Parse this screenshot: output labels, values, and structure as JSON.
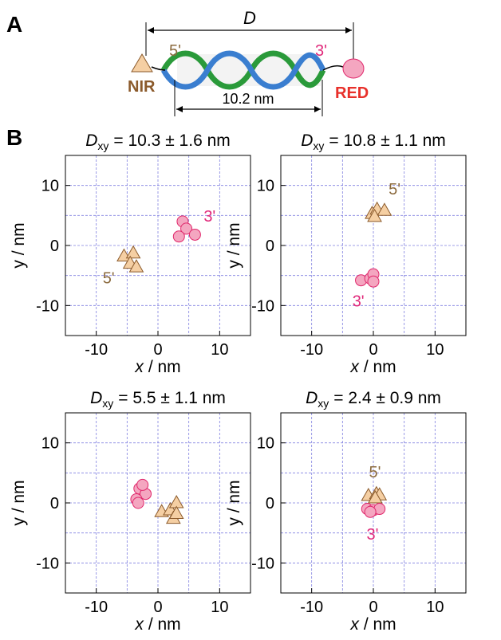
{
  "diagram": {
    "panel_a": "A",
    "panel_b": "B",
    "distance": "D",
    "end5": "5'",
    "end3": "3'",
    "nir": "NIR",
    "red": "RED",
    "length": "10.2 nm"
  },
  "chart_data": [
    {
      "type": "scatter",
      "title_symbol": "D",
      "title_subscript": "xy",
      "title": "= 10.3 ± 1.6 nm",
      "xlabel_var": "x",
      "xlabel": "/ nm",
      "ylabel": "y / nm",
      "xlim": [
        -15,
        15
      ],
      "ylim": [
        -15,
        15
      ],
      "xticks": [
        -10,
        0,
        10
      ],
      "yticks": [
        -10,
        0,
        10
      ],
      "xminor": [
        -5,
        5
      ],
      "yminor": [
        -5,
        5
      ],
      "grid": true,
      "series": [
        {
          "name": "5'",
          "marker": "triangle",
          "color": "#f5cfa3",
          "x": [
            -5.5,
            -4,
            -4.5,
            -3.5
          ],
          "y": [
            -1.8,
            -1.3,
            -3,
            -3.6
          ]
        },
        {
          "name": "3'",
          "marker": "circle",
          "color": "#f4a6c0",
          "x": [
            4,
            4.6,
            6,
            3.4
          ],
          "y": [
            4,
            2.8,
            1.8,
            1.5
          ]
        }
      ]
    },
    {
      "type": "scatter",
      "title_symbol": "D",
      "title_subscript": "xy",
      "title": "= 10.8 ± 1.1 nm",
      "xlabel_var": "x",
      "xlabel": "/ nm",
      "ylabel": "y / nm",
      "xlim": [
        -15,
        15
      ],
      "ylim": [
        -15,
        15
      ],
      "xticks": [
        -10,
        0,
        10
      ],
      "yticks": [
        -10,
        0,
        10
      ],
      "xminor": [
        -5,
        5
      ],
      "yminor": [
        -5,
        5
      ],
      "grid": true,
      "series": [
        {
          "name": "5'",
          "marker": "triangle",
          "color": "#f5cfa3",
          "x": [
            -0.2,
            0.6,
            1.8,
            0.2
          ],
          "y": [
            5.3,
            6,
            5.8,
            4.8
          ]
        },
        {
          "name": "3'",
          "marker": "circle",
          "color": "#f4a6c0",
          "x": [
            -2,
            -0.5,
            0,
            0
          ],
          "y": [
            -5.8,
            -5.5,
            -4.8,
            -6
          ]
        }
      ]
    },
    {
      "type": "scatter",
      "title_symbol": "D",
      "title_subscript": "xy",
      "title": "= 5.5 ± 1.1 nm",
      "xlabel_var": "x",
      "xlabel": "/ nm",
      "ylabel": "y / nm",
      "xlim": [
        -15,
        15
      ],
      "ylim": [
        -15,
        15
      ],
      "xticks": [
        -10,
        0,
        10
      ],
      "yticks": [
        -10,
        0,
        10
      ],
      "xminor": [
        -5,
        5
      ],
      "yminor": [
        -5,
        5
      ],
      "grid": true,
      "series": [
        {
          "marker": "circle",
          "color": "#f4a6c0",
          "x": [
            -3,
            -2,
            -3.5,
            -2.5,
            -3.2
          ],
          "y": [
            2.4,
            1.5,
            0.6,
            3,
            0
          ]
        },
        {
          "marker": "triangle",
          "color": "#f5cfa3",
          "x": [
            0.6,
            2,
            3,
            2.5,
            3
          ],
          "y": [
            -1.5,
            -1.2,
            0,
            -2.6,
            -1.8
          ]
        }
      ]
    },
    {
      "type": "scatter",
      "title_symbol": "D",
      "title_subscript": "xy",
      "title": "= 2.4 ± 0.9 nm",
      "xlabel_var": "x",
      "xlabel": "/ nm",
      "ylabel": "y / nm",
      "xlim": [
        -15,
        15
      ],
      "ylim": [
        -15,
        15
      ],
      "xticks": [
        -10,
        0,
        10
      ],
      "yticks": [
        -10,
        0,
        10
      ],
      "xminor": [
        -5,
        5
      ],
      "yminor": [
        -5,
        5
      ],
      "grid": true,
      "series": [
        {
          "name": "5'",
          "marker": "triangle",
          "color": "#f5cfa3",
          "x": [
            -0.8,
            0.5,
            1,
            0.3
          ],
          "y": [
            1.2,
            1.5,
            1.3,
            0.8
          ]
        },
        {
          "name": "3'",
          "marker": "circle",
          "color": "#f4a6c0",
          "x": [
            -1,
            0,
            1,
            -0.5
          ],
          "y": [
            -1,
            -1.2,
            -1,
            -1.5
          ]
        }
      ]
    }
  ]
}
